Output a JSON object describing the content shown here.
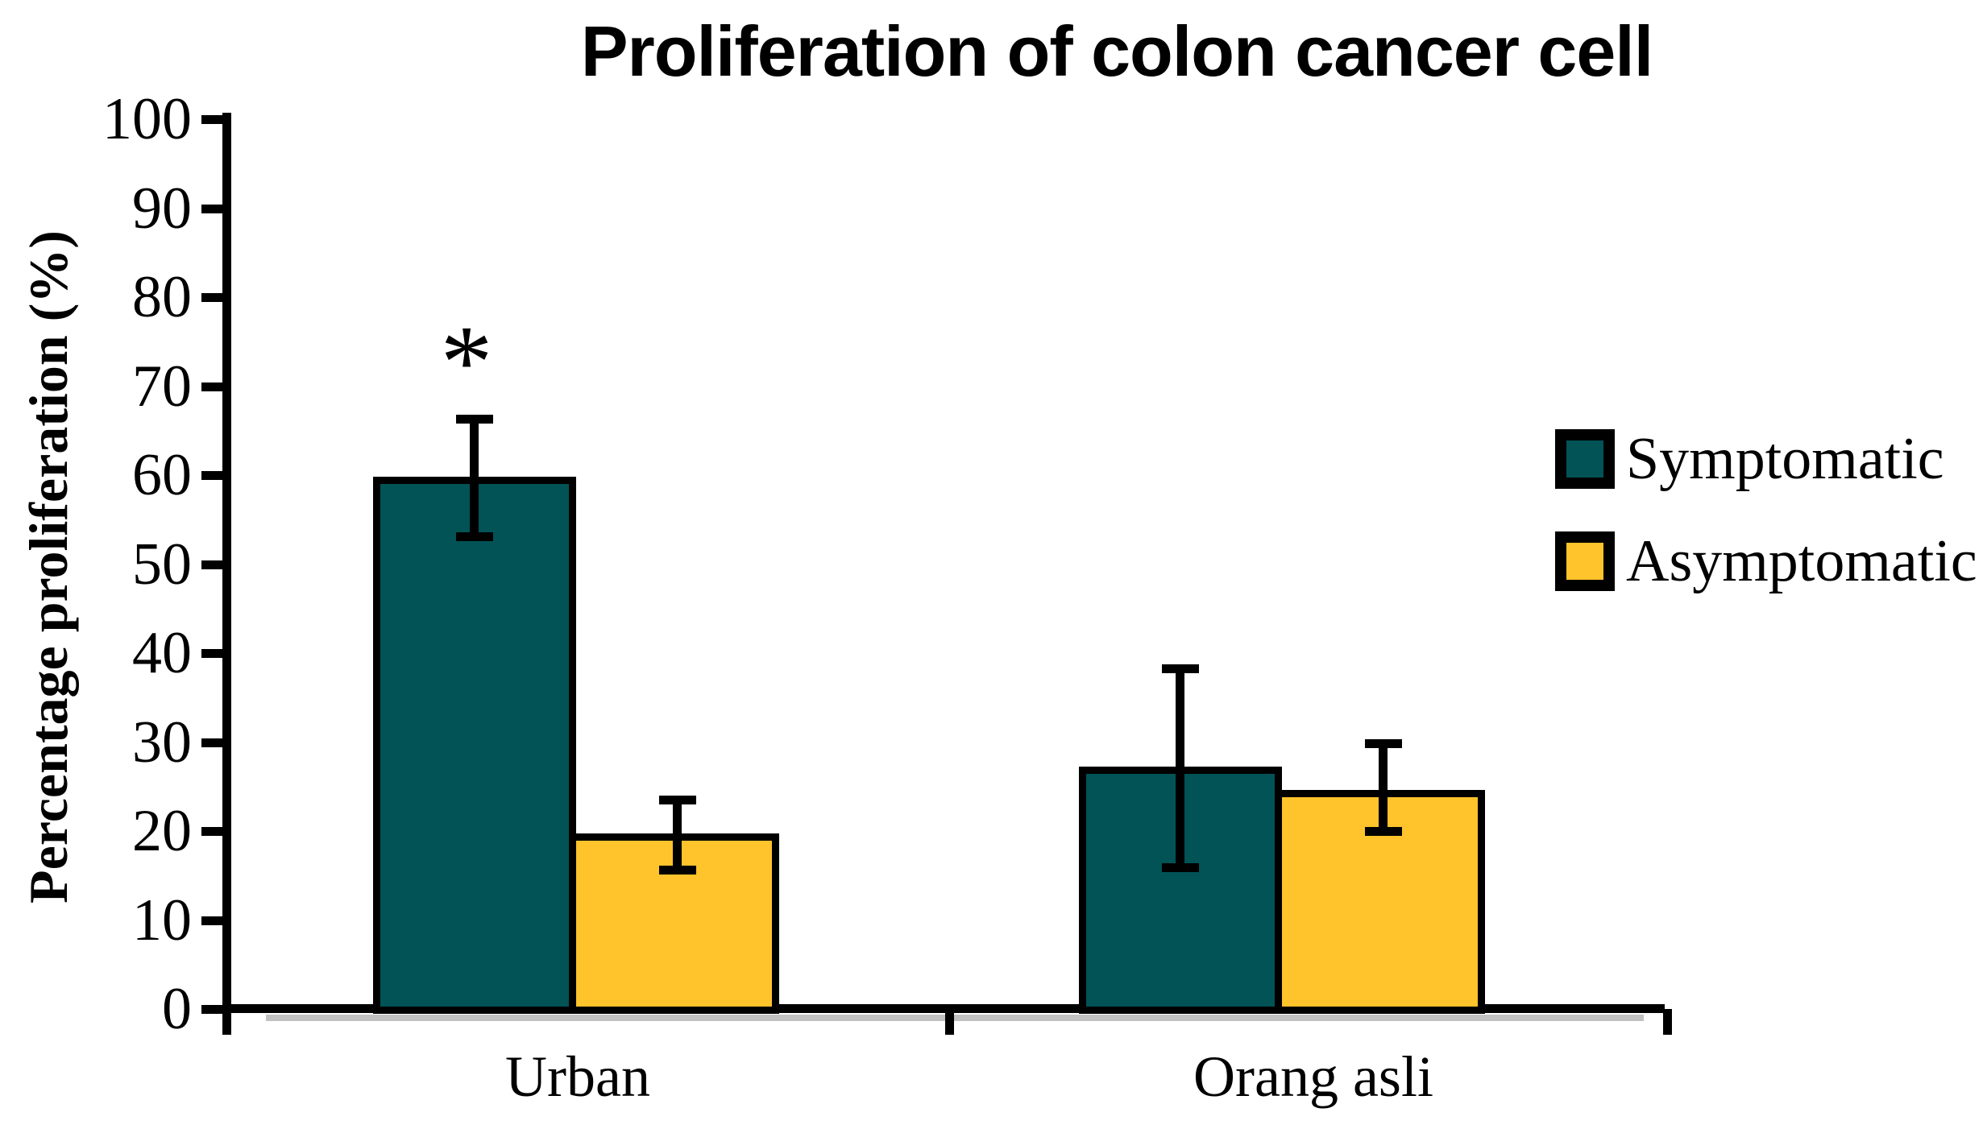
{
  "title": "Proliferation of colon cancer cell",
  "chart_data": {
    "type": "bar",
    "title": "Proliferation of colon cancer cell",
    "xlabel": "",
    "ylabel": "Percentage proliferation (%)",
    "categories": [
      "Urban",
      "Orang asli"
    ],
    "series": [
      {
        "name": "Symptomatic",
        "color": "#015356",
        "values": [
          59.8,
          27.2
        ],
        "err_up": [
          6.5,
          11.1
        ],
        "err_down": [
          6.8,
          11.4
        ]
      },
      {
        "name": "Asymptomatic",
        "color": "#FFC32B",
        "values": [
          19.7,
          24.6
        ],
        "err_up": [
          3.8,
          5.3
        ],
        "err_down": [
          4.1,
          4.7
        ]
      }
    ],
    "annotations": [
      {
        "text": "*",
        "category": "Urban",
        "series": "Symptomatic"
      }
    ],
    "ylim": [
      0,
      100
    ],
    "ytick_step": 10,
    "ytick_labels": [
      "0",
      "10",
      "20",
      "30",
      "40",
      "50",
      "60",
      "70",
      "80",
      "90",
      "100"
    ],
    "grid": false,
    "legend_position": "right",
    "error_bars": true,
    "bar_border_color": "#000000",
    "background_color": "#ffffff",
    "text_color": "#000000"
  }
}
